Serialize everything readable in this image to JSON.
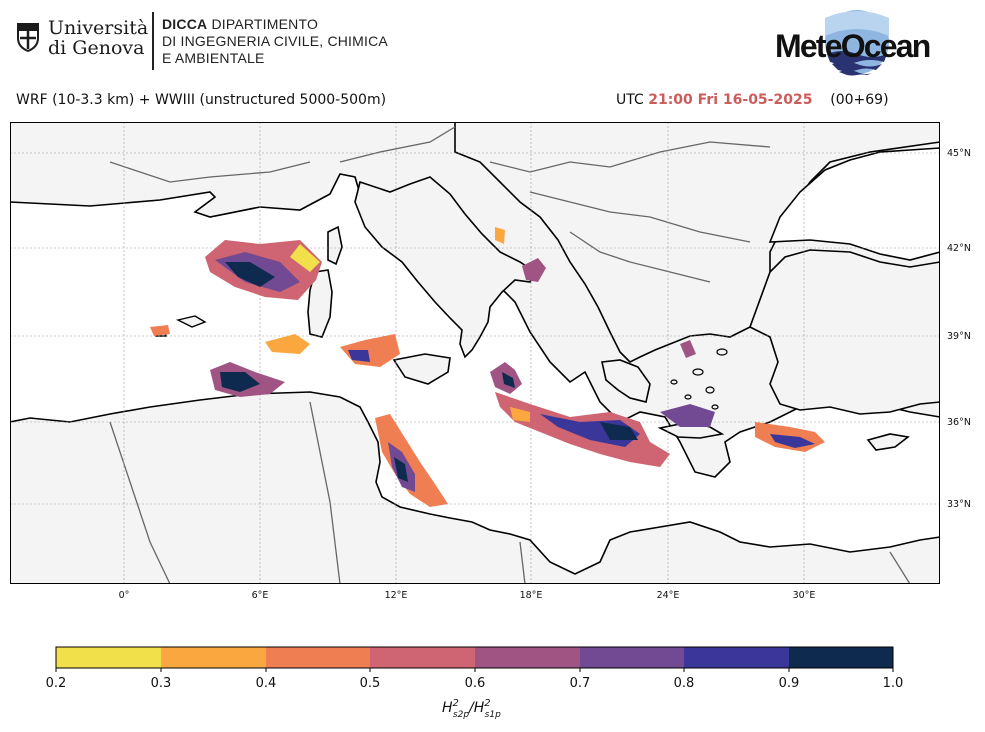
{
  "header": {
    "university_line1": "Università",
    "university_line2": "di Genova",
    "dept_bold": "DICCA",
    "dept_line1": "DIPARTIMENTO",
    "dept_line2": "DI INGEGNERIA CIVILE, CHIMICA",
    "dept_line3": "E AMBIENTALE",
    "brand": "MeteOcean"
  },
  "title": {
    "model": "WRF (10-3.3 km) + WWIII (unstructured 5000-500m)",
    "utc_label": "UTC",
    "time": "21:00 Fri 16-05-2025",
    "lead": "(00+69)"
  },
  "map": {
    "lon_labels": [
      "0°",
      "6°E",
      "12°E",
      "18°E",
      "24°E",
      "30°E"
    ],
    "lat_labels": [
      "45°N",
      "42°N",
      "39°N",
      "36°N",
      "33°N"
    ],
    "land_color": "#f4f4f4",
    "sea_color": "#ffffff",
    "coast_color": "#000000",
    "border_color": "#666666"
  },
  "colorbar": {
    "ticks": [
      "0.2",
      "0.3",
      "0.4",
      "0.5",
      "0.6",
      "0.7",
      "0.8",
      "0.9",
      "1.0"
    ],
    "colors": [
      "#f2e04a",
      "#fba73f",
      "#f07e53",
      "#cf6472",
      "#a05484",
      "#714a93",
      "#3b3699",
      "#0f2a4f"
    ],
    "label_main": "H",
    "label_sup1": "2",
    "label_sub1": "s2p",
    "label_slash": "/H",
    "label_sup2": "2",
    "label_sub2": "s1p"
  }
}
